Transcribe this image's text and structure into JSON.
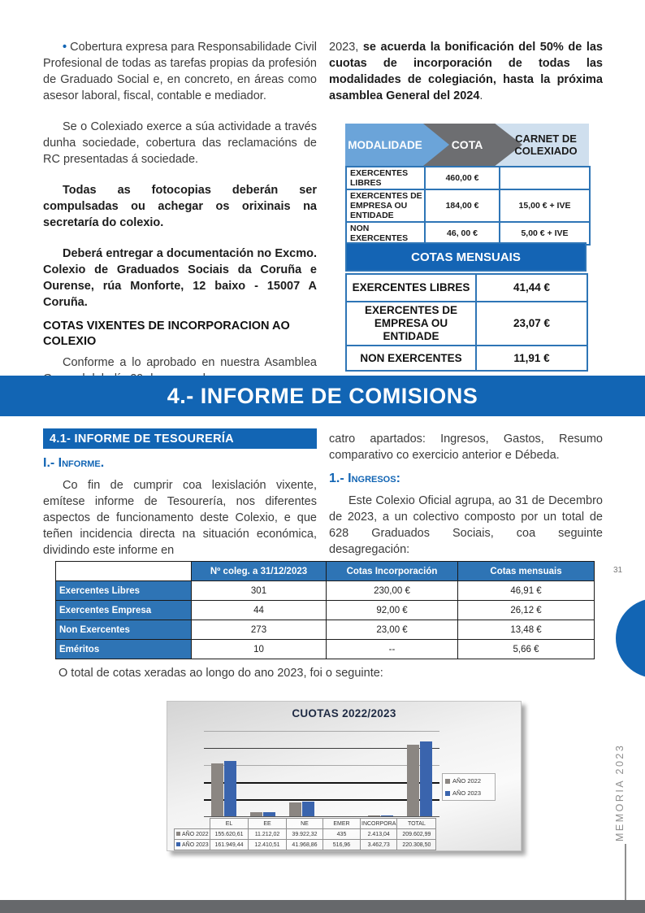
{
  "page": {
    "number": "31",
    "side_label": "MEMORIA 2023"
  },
  "colors": {
    "brand_blue": "#1265b4",
    "table_border_blue": "#2e75b6",
    "header_light_blue": "#6ba4d9",
    "header_gray": "#6d6e71",
    "header_pale_blue": "#cfdfee",
    "bottom_bar_gray": "#66686b"
  },
  "left_column": {
    "bullet": "•",
    "p1": "Cobertura expresa para Responsabilidade Civil Profesional de todas as tarefas propias da profesión de Graduado Social e, en concreto, en áreas como asesor laboral, fiscal, contable e mediador.",
    "p2": "Se o Colexiado exerce a súa actividade a través dunha sociedade, cobertura das reclamacións de RC presentadas á sociedade.",
    "p3": "Todas as fotocopias deberán ser compulsadas ou achegar os orixinais na secretaría do colexio.",
    "p4": "Deberá entregar a documentación no Excmo. Colexio de Graduados Sociais da Coruña e Ourense, rúa Monforte, 12 baixo - 15007 A Coruña.",
    "heading_cotas": "COTAS VIXENTES DE INCORPORACION AO COLEXIO",
    "p5": "Conforme a lo aprobado en nuestra Asamblea General del, día 29 de marzo de"
  },
  "right_column": {
    "p1_prefix": "2023, ",
    "p1_bold": "se acuerda la bonificación del 50% de las cuotas de incorporación de todas las modalidades de colegiación, hasta la próxima asamblea General del 2024",
    "p1_suffix": "."
  },
  "modalidade_table": {
    "headers": {
      "modalidade": "MODALIDADE",
      "cota": "COTA",
      "carnet": "CARNET DE COLEXIADO"
    },
    "rows": [
      [
        "EXERCENTES LIBRES",
        "460,00 €",
        ""
      ],
      [
        "EXERCENTES DE EMPRESA OU ENTIDADE",
        "184,00 €",
        "15,00 € + IVE"
      ],
      [
        "NON EXERCENTES",
        "46, 00 €",
        "5,00 € + IVE"
      ]
    ]
  },
  "cotas_mensuais_table": {
    "title": "COTAS MENSUAIS",
    "rows": [
      [
        "EXERCENTES LIBRES",
        "41,44 €"
      ],
      [
        "EXERCENTES DE EMPRESA OU ENTIDADE",
        "23,07 €"
      ],
      [
        "NON EXERCENTES",
        "11,91 €"
      ]
    ]
  },
  "banner": {
    "title": "4.- INFORME DE COMISIONS"
  },
  "section": {
    "header_41": "4.1- INFORME DE TESOURERÍA",
    "informe_label": "I.- Informe.",
    "informe_text": "Co fin de cumprir coa lexislación vixente, emítese informe de Tesourería, nos diferentes aspectos de funcionamento deste Colexio, e que teñen incidencia directa na situación económica, dividindo este informe en",
    "right_text": "catro apartados: Ingresos, Gastos, Resumo comparativo co exercicio anterior e Débeda.",
    "ingresos_label": "1.- Ingresos:",
    "ingresos_text": "Este Colexio Oficial agrupa, ao 31 de Decembro de 2023, a un colectivo composto por un total de 628 Graduados Sociais, coa seguinte desagregación:"
  },
  "coleg_table": {
    "headers": [
      "",
      "Nº coleg. a 31/12/2023",
      "Cotas Incorporación",
      "Cotas mensuais"
    ],
    "rows": [
      [
        "Exercentes Libres",
        "301",
        "230,00 €",
        "46,91 €"
      ],
      [
        "Exercentes Empresa",
        "44",
        "92,00 €",
        "26,12 €"
      ],
      [
        "Non Exercentes",
        "273",
        "23,00 €",
        "13,48 €"
      ],
      [
        "Eméritos",
        "10",
        "--",
        "5,66 €"
      ]
    ]
  },
  "total_line": "O total de cotas xeradas ao longo do ano 2023, foi o seguinte:",
  "chart_data": {
    "type": "bar",
    "title": "CUOTAS 2022/2023",
    "categories": [
      "EL",
      "EE",
      "NE",
      "EMER",
      "INCORPORA",
      "TOTAL"
    ],
    "series": [
      {
        "name": "AÑO 2022",
        "color": "#8b8682",
        "values": [
          155620.61,
          11212.02,
          39922.32,
          435,
          2413.04,
          209602.99
        ],
        "labels": [
          "155.620,61",
          "11.212,02",
          "39.922,32",
          "435",
          "2.413,04",
          "209.602,99"
        ]
      },
      {
        "name": "AÑO 2023",
        "color": "#3a64ad",
        "values": [
          161949.44,
          12410.51,
          41968.86,
          516.96,
          3462.73,
          220308.5
        ],
        "labels": [
          "161.949,44",
          "12.410,51",
          "41.968,86",
          "516,96",
          "3.462,73",
          "220.308,50"
        ]
      }
    ],
    "ylim": [
      0,
      250000
    ],
    "gridline_step": 50000,
    "gridlines": [
      {
        "value": 250000,
        "style": "1px solid #a8a8a8"
      },
      {
        "value": 200000,
        "style": "1px solid #3c3c3c"
      },
      {
        "value": 150000,
        "style": "1px solid #a8a8a8"
      },
      {
        "value": 100000,
        "style": "2px solid #141414"
      },
      {
        "value": 50000,
        "style": "2px solid #141414"
      }
    ],
    "legend_position": "right",
    "xlabel": "",
    "ylabel": ""
  }
}
